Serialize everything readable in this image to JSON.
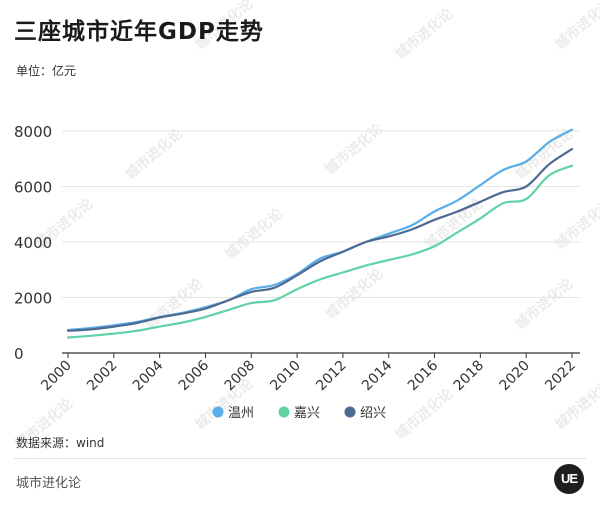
{
  "header": {
    "title": "三座城市近年GDP走势",
    "unit": "单位：亿元"
  },
  "source": "数据来源：wind",
  "footer": {
    "brand": "城市进化论",
    "logo_text": "UE"
  },
  "watermark": "城市进化论",
  "chart_data": {
    "type": "line",
    "x": [
      2000,
      2001,
      2002,
      2003,
      2004,
      2005,
      2006,
      2007,
      2008,
      2009,
      2010,
      2011,
      2012,
      2013,
      2014,
      2015,
      2016,
      2017,
      2018,
      2019,
      2020,
      2021,
      2022
    ],
    "xticks": [
      "2000",
      "2002",
      "2004",
      "2006",
      "2008",
      "2010",
      "2012",
      "2014",
      "2016",
      "2018",
      "2020",
      "2022"
    ],
    "yticks": [
      "0",
      "2000",
      "4000",
      "6000",
      "8000"
    ],
    "ylim": [
      0,
      8000
    ],
    "grid": true,
    "legend_position": "bottom",
    "series": [
      {
        "name": "温州",
        "color": "#5aaee8",
        "values": [
          830,
          900,
          1000,
          1120,
          1300,
          1450,
          1650,
          1900,
          2300,
          2450,
          2850,
          3400,
          3650,
          4000,
          4300,
          4600,
          5100,
          5500,
          6050,
          6600,
          6900,
          7600,
          8050
        ]
      },
      {
        "name": "嘉兴",
        "color": "#5fd3a6",
        "values": [
          560,
          620,
          700,
          800,
          950,
          1100,
          1300,
          1550,
          1800,
          1900,
          2300,
          2650,
          2900,
          3150,
          3350,
          3550,
          3850,
          4350,
          4850,
          5400,
          5550,
          6400,
          6750
        ]
      },
      {
        "name": "绍兴",
        "color": "#4f6a92",
        "values": [
          800,
          850,
          950,
          1080,
          1280,
          1420,
          1600,
          1900,
          2200,
          2350,
          2800,
          3300,
          3650,
          4000,
          4200,
          4450,
          4800,
          5100,
          5450,
          5800,
          6000,
          6800,
          7350
        ]
      }
    ]
  }
}
